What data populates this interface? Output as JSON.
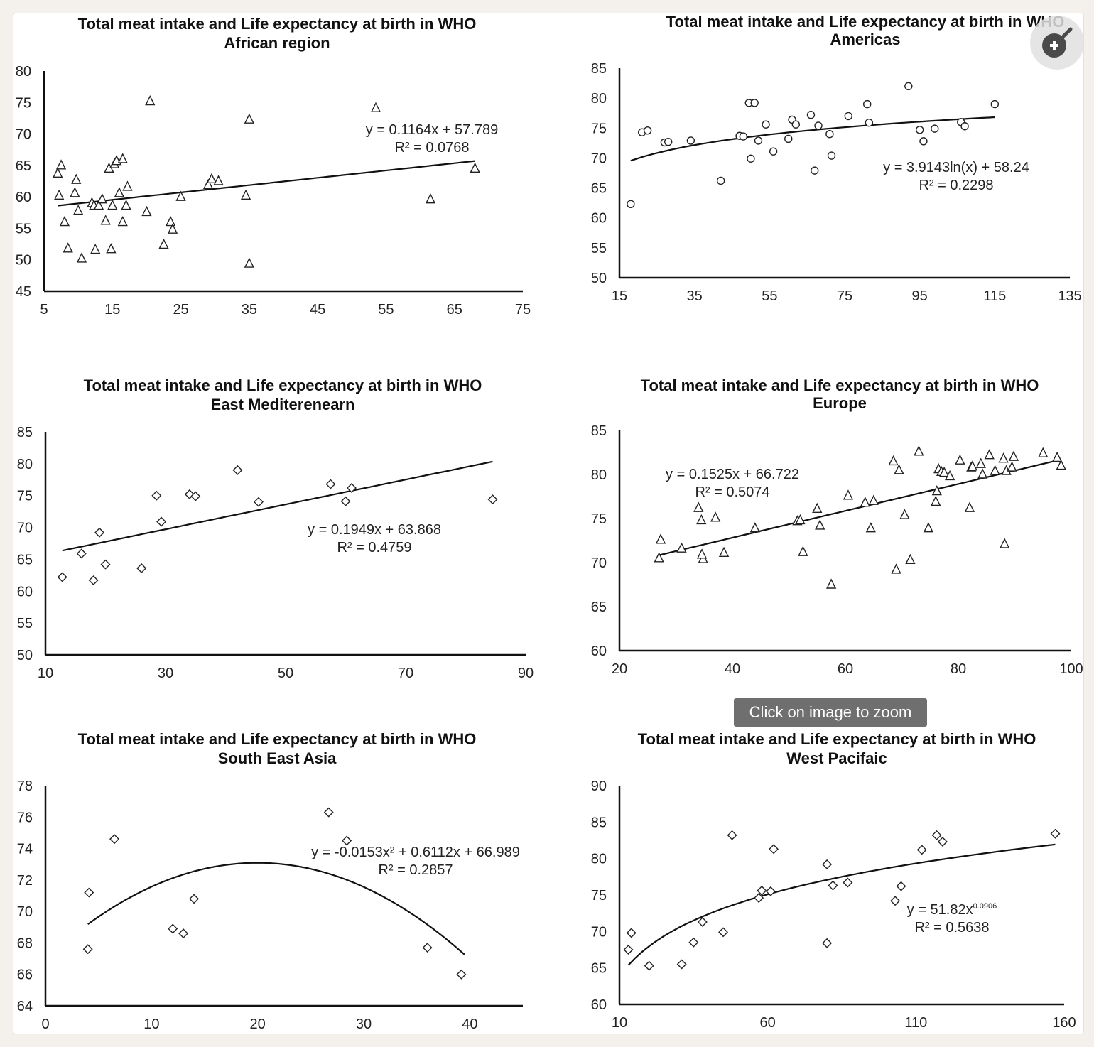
{
  "ui": {
    "zoom_hint": "Click on image to zoom",
    "zoom_icon": "zoom-in-magnifier-icon"
  },
  "chart_data": [
    {
      "type": "scatter",
      "title": [
        "Total meat intake and Life expectancy at birth in WHO",
        "African region"
      ],
      "marker": "triangle",
      "xlim": [
        5,
        75
      ],
      "ylim": [
        45,
        80
      ],
      "xticks": [
        5,
        15,
        25,
        35,
        45,
        55,
        65,
        75
      ],
      "yticks": [
        45,
        50,
        55,
        60,
        65,
        70,
        75,
        80
      ],
      "points": [
        [
          7,
          63.7
        ],
        [
          7.5,
          65
        ],
        [
          7.2,
          60.2
        ],
        [
          8,
          56
        ],
        [
          8.5,
          51.8
        ],
        [
          9.5,
          60.6
        ],
        [
          9.7,
          62.7
        ],
        [
          10,
          57.8
        ],
        [
          10.5,
          50.2
        ],
        [
          12,
          59
        ],
        [
          12.3,
          58.6
        ],
        [
          12.5,
          51.6
        ],
        [
          13,
          58.6
        ],
        [
          13.5,
          59.6
        ],
        [
          14,
          56.2
        ],
        [
          14.5,
          64.5
        ],
        [
          15,
          58.6
        ],
        [
          14.8,
          51.7
        ],
        [
          15.3,
          65.2
        ],
        [
          15.6,
          65.7
        ],
        [
          16,
          60.6
        ],
        [
          16.5,
          56
        ],
        [
          16.5,
          66
        ],
        [
          17,
          58.6
        ],
        [
          17.2,
          61.6
        ],
        [
          20,
          57.6
        ],
        [
          20.5,
          75.2
        ],
        [
          22.5,
          52.4
        ],
        [
          23.5,
          56
        ],
        [
          23.8,
          54.8
        ],
        [
          25,
          60
        ],
        [
          29,
          61.9
        ],
        [
          29.5,
          62.8
        ],
        [
          30.5,
          62.5
        ],
        [
          34.5,
          60.2
        ],
        [
          35,
          72.3
        ],
        [
          35,
          49.4
        ],
        [
          53.5,
          74.1
        ],
        [
          61.5,
          59.6
        ],
        [
          68,
          64.5
        ]
      ],
      "trend": {
        "kind": "linear",
        "a": 0.1164,
        "b": 57.789,
        "from": 7,
        "to": 68
      },
      "equation": "y = 0.1164x + 57.789",
      "r2": "R² = 0.0768"
    },
    {
      "type": "scatter",
      "title": [
        "Total meat intake and Life expectancy at birth in WHO",
        "Americas"
      ],
      "marker": "circle",
      "xlim": [
        15,
        135
      ],
      "ylim": [
        50,
        85
      ],
      "xticks": [
        15,
        35,
        55,
        75,
        95,
        115,
        135
      ],
      "yticks": [
        50,
        55,
        60,
        65,
        70,
        75,
        80,
        85
      ],
      "points": [
        [
          18,
          62.3
        ],
        [
          21,
          74.3
        ],
        [
          22.5,
          74.6
        ],
        [
          27,
          72.6
        ],
        [
          28,
          72.7
        ],
        [
          34,
          72.9
        ],
        [
          42,
          66.2
        ],
        [
          47,
          73.7
        ],
        [
          48,
          73.6
        ],
        [
          49.5,
          79.2
        ],
        [
          51,
          79.2
        ],
        [
          50,
          69.9
        ],
        [
          52,
          72.9
        ],
        [
          54,
          75.6
        ],
        [
          56,
          71.1
        ],
        [
          60,
          73.2
        ],
        [
          61,
          76.4
        ],
        [
          62,
          75.6
        ],
        [
          66,
          77.2
        ],
        [
          67,
          67.9
        ],
        [
          68,
          75.4
        ],
        [
          71,
          74
        ],
        [
          71.5,
          70.4
        ],
        [
          76,
          77
        ],
        [
          81,
          79
        ],
        [
          81.5,
          75.9
        ],
        [
          92,
          82
        ],
        [
          95,
          74.7
        ],
        [
          96,
          72.8
        ],
        [
          99,
          74.9
        ],
        [
          106,
          76
        ],
        [
          107,
          75.3
        ],
        [
          115,
          79
        ]
      ],
      "trend": {
        "kind": "log",
        "a": 3.9143,
        "b": 58.24,
        "from": 18,
        "to": 115
      },
      "equation": "y = 3.9143ln(x)  + 58.24",
      "r2": "R² = 0.2298"
    },
    {
      "type": "scatter",
      "title": [
        "Total meat intake and Life expectancy at birth in WHO",
        "East Mediterenearn"
      ],
      "marker": "diamond",
      "xlim": [
        10,
        90
      ],
      "ylim": [
        50,
        85
      ],
      "xticks": [
        10,
        30,
        50,
        70,
        90
      ],
      "yticks": [
        50,
        55,
        60,
        65,
        70,
        75,
        80,
        85
      ],
      "points": [
        [
          12.8,
          62.2
        ],
        [
          16,
          65.9
        ],
        [
          18,
          61.7
        ],
        [
          19,
          69.2
        ],
        [
          20,
          64.2
        ],
        [
          26,
          63.6
        ],
        [
          28.5,
          75
        ],
        [
          29.3,
          70.9
        ],
        [
          34,
          75.2
        ],
        [
          35,
          74.9
        ],
        [
          42,
          79
        ],
        [
          45.5,
          74
        ],
        [
          57.5,
          76.8
        ],
        [
          60,
          74.1
        ],
        [
          61,
          76.2
        ],
        [
          84.5,
          74.4
        ]
      ],
      "trend": {
        "kind": "linear",
        "a": 0.1949,
        "b": 63.868,
        "from": 12.8,
        "to": 84.5
      },
      "equation": "y = 0.1949x + 63.868",
      "r2": "R² = 0.4759"
    },
    {
      "type": "scatter",
      "title": [
        "Total meat intake  and Life expectancy at birth in WHO",
        "Europe"
      ],
      "marker": "triangle",
      "xlim": [
        20,
        100
      ],
      "ylim": [
        60,
        85
      ],
      "xticks": [
        20,
        40,
        60,
        80,
        100
      ],
      "yticks": [
        60,
        65,
        70,
        75,
        80,
        85
      ],
      "points": [
        [
          27,
          70.5
        ],
        [
          27.3,
          72.6
        ],
        [
          31,
          71.6
        ],
        [
          34,
          76.2
        ],
        [
          34.5,
          74.8
        ],
        [
          34.8,
          70.4
        ],
        [
          34.6,
          70.9
        ],
        [
          37,
          75.1
        ],
        [
          38.5,
          71.1
        ],
        [
          44,
          73.9
        ],
        [
          51.5,
          74.7
        ],
        [
          52,
          74.8
        ],
        [
          52.5,
          71.2
        ],
        [
          55,
          76.1
        ],
        [
          55.5,
          74.2
        ],
        [
          57.5,
          67.5
        ],
        [
          60.5,
          77.6
        ],
        [
          63.5,
          76.8
        ],
        [
          64.5,
          73.9
        ],
        [
          65,
          77
        ],
        [
          68.5,
          81.5
        ],
        [
          69,
          69.2
        ],
        [
          69.5,
          80.5
        ],
        [
          70.5,
          75.4
        ],
        [
          71.5,
          70.3
        ],
        [
          73,
          82.6
        ],
        [
          74.7,
          73.9
        ],
        [
          76,
          76.9
        ],
        [
          76.2,
          78.1
        ],
        [
          76.5,
          80.6
        ],
        [
          77,
          80.3
        ],
        [
          77.5,
          80.2
        ],
        [
          78.5,
          79.8
        ],
        [
          80.3,
          81.6
        ],
        [
          82,
          76.2
        ],
        [
          82.3,
          80.8
        ],
        [
          82.5,
          80.9
        ],
        [
          84,
          81.2
        ],
        [
          84.3,
          80
        ],
        [
          85.5,
          82.2
        ],
        [
          86.5,
          80.4
        ],
        [
          88,
          81.8
        ],
        [
          88.2,
          72.1
        ],
        [
          88.5,
          80.4
        ],
        [
          89.5,
          80.8
        ],
        [
          89.8,
          82
        ],
        [
          95,
          82.4
        ],
        [
          97.5,
          81.9
        ],
        [
          98.2,
          81
        ]
      ],
      "trend": {
        "kind": "linear",
        "a": 0.1525,
        "b": 66.722,
        "from": 27,
        "to": 98
      },
      "equation": "y = 0.1525x + 66.722",
      "r2": "R² = 0.5074"
    },
    {
      "type": "scatter",
      "title": [
        "Total meat intake and Life expectancy at birth in WHO",
        "South East Asia"
      ],
      "marker": "diamond",
      "xlim": [
        0,
        45
      ],
      "ylim": [
        64,
        78
      ],
      "xticks": [
        0,
        10,
        20,
        30,
        40
      ],
      "yticks": [
        64,
        66,
        68,
        70,
        72,
        74,
        76,
        78
      ],
      "points": [
        [
          4,
          67.6
        ],
        [
          4.1,
          71.2
        ],
        [
          6.5,
          74.6
        ],
        [
          12,
          68.9
        ],
        [
          13,
          68.6
        ],
        [
          14,
          70.8
        ],
        [
          26.7,
          76.3
        ],
        [
          28.4,
          74.5
        ],
        [
          36,
          67.7
        ],
        [
          39.2,
          66
        ]
      ],
      "trend": {
        "kind": "poly2",
        "a": -0.0153,
        "b": 0.6112,
        "c": 66.989,
        "from": 4,
        "to": 39.5
      },
      "equation": "y = -0.0153x² + 0.6112x + 66.989",
      "r2": "R² = 0.2857"
    },
    {
      "type": "scatter",
      "title": [
        "Total meat intake and Life expectancy at birth in WHO",
        "West Pacifaic"
      ],
      "marker": "diamond",
      "xlim": [
        10,
        160
      ],
      "ylim": [
        60,
        90
      ],
      "xticks": [
        10,
        60,
        110,
        160
      ],
      "yticks": [
        60,
        65,
        70,
        75,
        80,
        85,
        90
      ],
      "points": [
        [
          13,
          67.5
        ],
        [
          14,
          69.8
        ],
        [
          20,
          65.3
        ],
        [
          31,
          65.5
        ],
        [
          35,
          68.5
        ],
        [
          38,
          71.3
        ],
        [
          45,
          69.9
        ],
        [
          48,
          83.2
        ],
        [
          57,
          74.6
        ],
        [
          58,
          75.6
        ],
        [
          61,
          75.5
        ],
        [
          62,
          81.3
        ],
        [
          80,
          68.4
        ],
        [
          80,
          79.2
        ],
        [
          82,
          76.3
        ],
        [
          87,
          76.7
        ],
        [
          103,
          74.2
        ],
        [
          105,
          76.2
        ],
        [
          112,
          81.2
        ],
        [
          117,
          83.2
        ],
        [
          119,
          82.3
        ],
        [
          157,
          83.4
        ]
      ],
      "trend": {
        "kind": "power",
        "a": 51.82,
        "b": 0.0906,
        "from": 13,
        "to": 157
      },
      "equation": "y = 51.82x",
      "eq_exponent": "0.0906",
      "r2": "R² = 0.5638"
    }
  ]
}
